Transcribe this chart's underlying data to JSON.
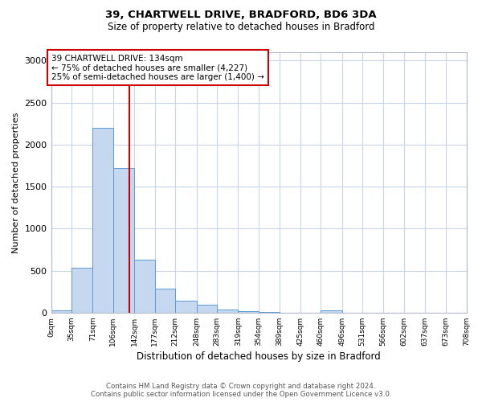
{
  "title1": "39, CHARTWELL DRIVE, BRADFORD, BD6 3DA",
  "title2": "Size of property relative to detached houses in Bradford",
  "xlabel": "Distribution of detached houses by size in Bradford",
  "ylabel": "Number of detached properties",
  "bin_labels": [
    "0sqm",
    "35sqm",
    "71sqm",
    "106sqm",
    "142sqm",
    "177sqm",
    "212sqm",
    "248sqm",
    "283sqm",
    "319sqm",
    "354sqm",
    "389sqm",
    "425sqm",
    "460sqm",
    "496sqm",
    "531sqm",
    "566sqm",
    "602sqm",
    "637sqm",
    "673sqm",
    "708sqm"
  ],
  "bar_heights": [
    30,
    530,
    2200,
    1720,
    630,
    285,
    140,
    90,
    40,
    20,
    5,
    0,
    0,
    25,
    0,
    0,
    0,
    0,
    0,
    0
  ],
  "bar_color": "#c5d8f0",
  "bar_edge_color": "#5b9bd5",
  "vline_x": 134,
  "vline_color": "#cc0000",
  "annotation_line1": "39 CHARTWELL DRIVE: 134sqm",
  "annotation_line2": "← 75% of detached houses are smaller (4,227)",
  "annotation_line3": "25% of semi-detached houses are larger (1,400) →",
  "annotation_box_color": "#ffffff",
  "annotation_box_edge": "#cc0000",
  "ylim": [
    0,
    3100
  ],
  "yticks": [
    0,
    500,
    1000,
    1500,
    2000,
    2500,
    3000
  ],
  "footnote1": "Contains HM Land Registry data © Crown copyright and database right 2024.",
  "footnote2": "Contains public sector information licensed under the Open Government Licence v3.0.",
  "bg_color": "#ffffff",
  "grid_color": "#c8d4e8"
}
